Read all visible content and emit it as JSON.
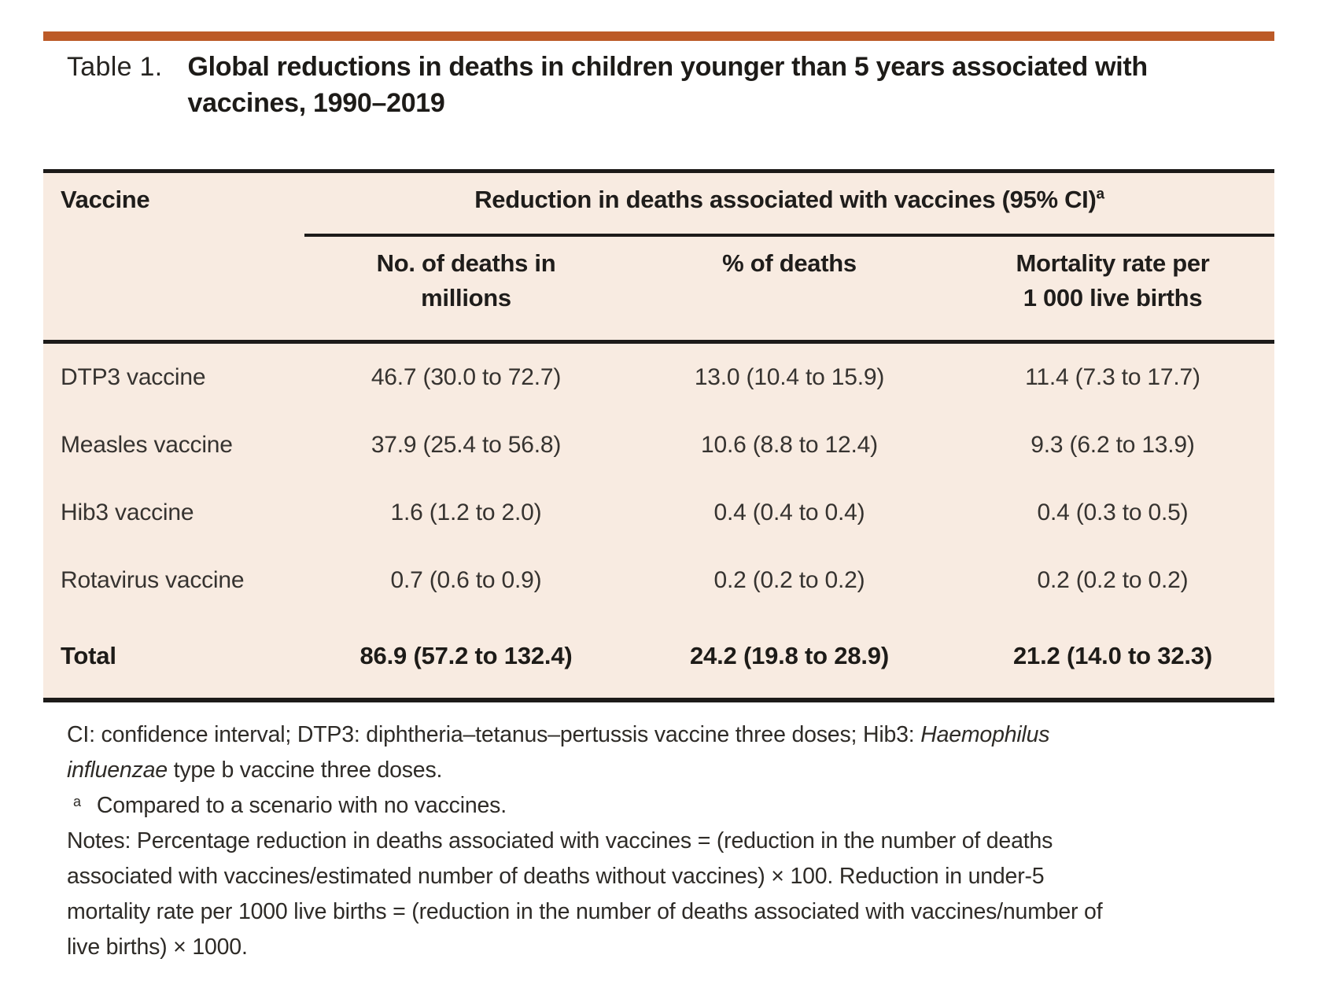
{
  "accent_color": "#bc5a27",
  "table_background": "#f8ebe1",
  "title": {
    "label": "Table 1.",
    "line1": "Global reductions in deaths in children younger than 5 years associated with",
    "line2": "vaccines, 1990–2019"
  },
  "table": {
    "col1_header": "Vaccine",
    "span_header": "Reduction in deaths associated with vaccines (95% CI)",
    "span_header_marker": "a",
    "sub_headers": {
      "col2_line1": "No. of deaths in",
      "col2_line2": "millions",
      "col3": "% of deaths",
      "col4_line1": "Mortality rate per",
      "col4_line2": "1 000 live births"
    },
    "rows": [
      {
        "vaccine": "DTP3 vaccine",
        "deaths_millions": "46.7 (30.0 to 72.7)",
        "pct_deaths": "13.0 (10.4 to 15.9)",
        "mortality_rate": "11.4 (7.3 to 17.7)"
      },
      {
        "vaccine": "Measles vaccine",
        "deaths_millions": "37.9 (25.4 to 56.8)",
        "pct_deaths": "10.6 (8.8 to 12.4)",
        "mortality_rate": "9.3 (6.2 to 13.9)"
      },
      {
        "vaccine": "Hib3 vaccine",
        "deaths_millions": "1.6 (1.2 to 2.0)",
        "pct_deaths": "0.4 (0.4 to 0.4)",
        "mortality_rate": "0.4 (0.3 to 0.5)"
      },
      {
        "vaccine": "Rotavirus vaccine",
        "deaths_millions": "0.7 (0.6 to 0.9)",
        "pct_deaths": "0.2 (0.2 to 0.2)",
        "mortality_rate": "0.2 (0.2 to 0.2)"
      }
    ],
    "total_row": {
      "vaccine": "Total",
      "deaths_millions": "86.9 (57.2 to 132.4)",
      "pct_deaths": "24.2 (19.8 to 28.9)",
      "mortality_rate": "21.2 (14.0 to 32.3)"
    }
  },
  "footnotes": {
    "abbrev_part1": "CI: confidence interval; DTP3: diphtheria–tetanus–pertussis vaccine three doses; Hib3: ",
    "abbrev_italic1": "Haemophilus",
    "abbrev_italic2": "influenzae",
    "abbrev_part2": " type b vaccine three doses.",
    "note_a_marker": "a",
    "note_a_text": "Compared to a scenario with no vaccines.",
    "notes_line1": "Notes: Percentage reduction in deaths associated with vaccines = (reduction in the number of deaths",
    "notes_line2": "associated with vaccines/estimated number of deaths without vaccines) × 100. Reduction in under-5",
    "notes_line3": "mortality rate per 1000 live births = (reduction in the number of deaths associated with vaccines/number of",
    "notes_line4": "live births) × 1000."
  }
}
